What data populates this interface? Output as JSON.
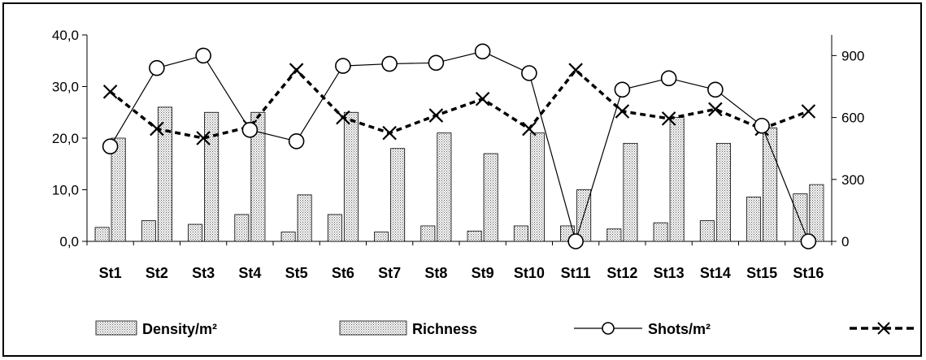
{
  "chart_data": {
    "type": "bar",
    "categories": [
      "St1",
      "St2",
      "St3",
      "St4",
      "St5",
      "St6",
      "St7",
      "St8",
      "St9",
      "St10",
      "St11",
      "St12",
      "St13",
      "St14",
      "St15",
      "St16"
    ],
    "y_left": {
      "ticks": [
        "0,0",
        "10,0",
        "20,0",
        "30,0",
        "40,0"
      ],
      "min": 0,
      "max": 40
    },
    "y_right": {
      "ticks": [
        "0",
        "300",
        "600",
        "900"
      ],
      "min": 0,
      "max": 1000
    },
    "series": [
      {
        "name": "Density/m²",
        "type": "bar",
        "axis": "left",
        "values": [
          2.7,
          4.0,
          3.3,
          5.2,
          1.8,
          5.2,
          1.8,
          3.0,
          2.0,
          3.0,
          3.0,
          2.4,
          3.6,
          4.0,
          8.6,
          9.2
        ]
      },
      {
        "name": "Richness",
        "type": "bar",
        "axis": "left",
        "values": [
          20,
          26,
          25,
          25,
          9,
          25,
          18,
          21,
          17,
          21,
          10,
          19,
          24,
          19,
          22,
          11
        ]
      },
      {
        "name": "Shots/m²",
        "type": "line",
        "axis": "right",
        "values": [
          460,
          840,
          900,
          540,
          485,
          850,
          860,
          865,
          920,
          815,
          0,
          735,
          790,
          735,
          560,
          0
        ]
      },
      {
        "name": "",
        "type": "dashed-line",
        "axis": "right",
        "values": [
          725,
          545,
          500,
          555,
          830,
          600,
          525,
          610,
          690,
          545,
          830,
          630,
          595,
          640,
          545,
          630
        ]
      }
    ],
    "legend": {
      "position": "bottom",
      "labels": [
        "Density/m²",
        "Richness",
        "Shots/m²",
        ""
      ]
    },
    "colors": {
      "bar_fill": "#d9d9d9",
      "line": "#000000"
    },
    "grid": false
  }
}
